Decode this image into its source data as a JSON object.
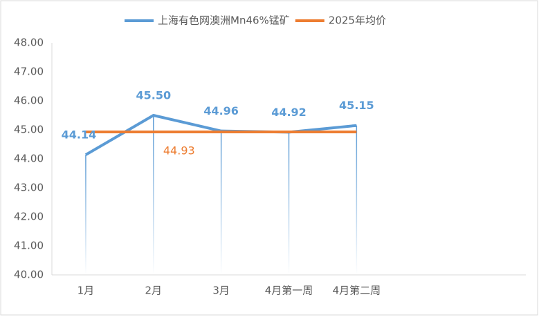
{
  "chart_data": {
    "type": "line",
    "categories": [
      "1月",
      "2月",
      "3月",
      "4月第一周",
      "4月第二周",
      null,
      null
    ],
    "series": [
      {
        "name": "上海有色网澳洲Mn46%锰矿",
        "color": "#5b9bd5",
        "values": [
          44.14,
          45.5,
          44.96,
          44.92,
          45.15,
          null,
          null
        ],
        "value_labels": [
          "44.14",
          "45.50",
          "44.96",
          "44.92",
          "45.15",
          null,
          null
        ]
      },
      {
        "name": "2025年均价",
        "color": "#ed7d31",
        "values": [
          44.93,
          44.93,
          44.93,
          44.93,
          44.93,
          null,
          null
        ],
        "value_labels": [
          null,
          "44.93",
          null,
          null,
          null,
          null,
          null
        ]
      }
    ],
    "ylim": [
      40,
      48
    ],
    "yticks": [
      {
        "value": 40,
        "label": "40.00"
      },
      {
        "value": 41,
        "label": "41.00"
      },
      {
        "value": 42,
        "label": "42.00"
      },
      {
        "value": 43,
        "label": "43.00"
      },
      {
        "value": 44,
        "label": "44.00"
      },
      {
        "value": 45,
        "label": "45.00"
      },
      {
        "value": 46,
        "label": "46.00"
      },
      {
        "value": 47,
        "label": "47.00"
      },
      {
        "value": 48,
        "label": "48.00"
      }
    ],
    "legend": "top",
    "drop_lines": true
  }
}
